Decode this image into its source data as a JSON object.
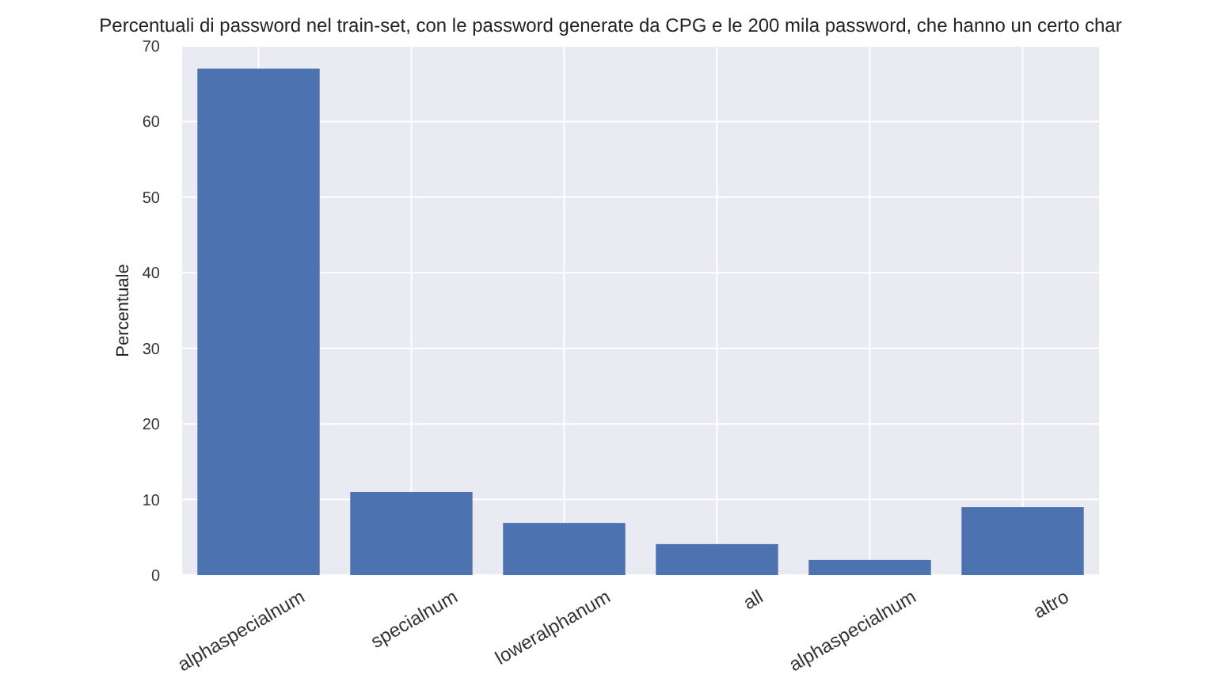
{
  "chart_data": {
    "type": "bar",
    "title": "Percentuali di password nel train-set, con le password generate da CPG e le 200 mila password, che hanno un certo char",
    "ylabel": "Percentuale",
    "categories": [
      "alphaspecialnum",
      "specialnum",
      "loweralphanum",
      "all",
      "alphaspecialnum",
      "altro"
    ],
    "values": [
      67,
      11,
      6.9,
      4.1,
      2,
      9
    ],
    "color": "#4c72b0",
    "ylim": [
      0,
      70
    ],
    "yticks": [
      0,
      10,
      20,
      30,
      40,
      50,
      60,
      70
    ],
    "grid": true
  }
}
